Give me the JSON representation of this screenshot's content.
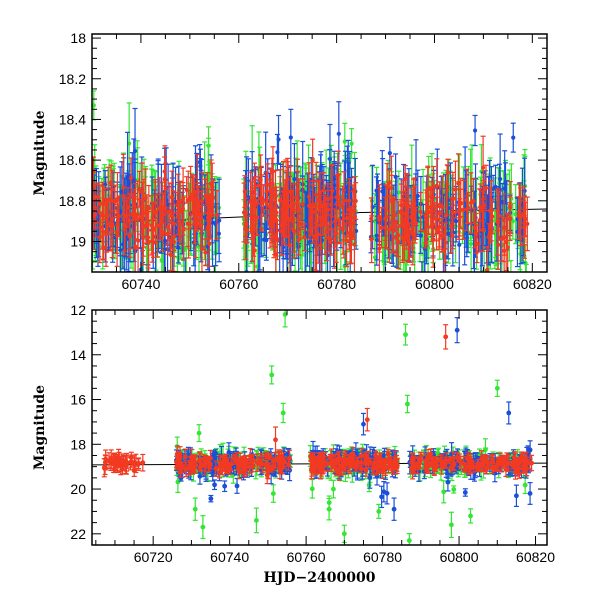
{
  "colors": {
    "green": "#33e633",
    "blue": "#1a4fd9",
    "red": "#f23a22",
    "model": "#000000"
  },
  "chart_data": [
    {
      "type": "scatter",
      "name": "top-panel",
      "xlabel": "",
      "ylabel": "Magnitude",
      "xlim": [
        60730,
        60823
      ],
      "ylim": [
        19.15,
        17.98
      ],
      "y_inverted": true,
      "xticks": [
        60740,
        60760,
        60780,
        60800,
        60820
      ],
      "yticks": [
        18,
        18.2,
        18.4,
        18.6,
        18.8,
        19
      ],
      "ytick_labels": [
        "18",
        "18.2",
        "18.4",
        "18.6",
        "18.8",
        "19"
      ],
      "baseline": 18.87,
      "model_line": [
        [
          60730,
          18.91
        ],
        [
          60780,
          18.86
        ],
        [
          60823,
          18.84
        ]
      ],
      "observation_segments": [
        [
          60730,
          60756
        ],
        [
          60761,
          60784
        ],
        [
          60787,
          60819
        ]
      ]
    },
    {
      "type": "scatter",
      "name": "bottom-panel",
      "xlabel": "HJD−2400000",
      "ylabel": "Magnitude",
      "xlim": [
        60704,
        60823
      ],
      "ylim": [
        22.5,
        12
      ],
      "y_inverted": true,
      "xticks": [
        60720,
        60740,
        60760,
        60780,
        60800,
        60820
      ],
      "yticks": [
        12,
        14,
        16,
        18,
        20,
        22
      ],
      "ytick_labels": [
        "12",
        "14",
        "16",
        "18",
        "20",
        "22"
      ],
      "baseline": 18.85,
      "model_line": [
        [
          60704,
          18.92
        ],
        [
          60780,
          18.86
        ],
        [
          60823,
          18.84
        ]
      ],
      "early_red_segment": [
        60707,
        60718
      ],
      "observation_segments": [
        [
          60726,
          60756
        ],
        [
          60761,
          60784
        ],
        [
          60787,
          60819
        ]
      ],
      "outliers": [
        {
          "series": "green",
          "x": 60754.5,
          "y": 12.2
        },
        {
          "series": "green",
          "x": 60751,
          "y": 14.9
        },
        {
          "series": "green",
          "x": 60754,
          "y": 16.6
        },
        {
          "series": "green",
          "x": 60786,
          "y": 13.1
        },
        {
          "series": "green",
          "x": 60786.5,
          "y": 16.2
        },
        {
          "series": "green",
          "x": 60810,
          "y": 15.5
        },
        {
          "series": "green",
          "x": 60732,
          "y": 17.5
        },
        {
          "series": "green",
          "x": 60731,
          "y": 20.9
        },
        {
          "series": "green",
          "x": 60733,
          "y": 21.7
        },
        {
          "series": "green",
          "x": 60747,
          "y": 21.4
        },
        {
          "series": "green",
          "x": 60770,
          "y": 22.0
        },
        {
          "series": "green",
          "x": 60787,
          "y": 22.3
        },
        {
          "series": "green",
          "x": 60798,
          "y": 21.6
        },
        {
          "series": "green",
          "x": 60803,
          "y": 21.2
        },
        {
          "series": "green",
          "x": 60779,
          "y": 21.0
        },
        {
          "series": "green",
          "x": 60766,
          "y": 20.9
        },
        {
          "series": "red",
          "x": 60796.5,
          "y": 13.2
        },
        {
          "series": "red",
          "x": 60776,
          "y": 16.9
        },
        {
          "series": "red",
          "x": 60752,
          "y": 17.8
        },
        {
          "series": "blue",
          "x": 60799.5,
          "y": 12.9
        },
        {
          "series": "blue",
          "x": 60813,
          "y": 16.6
        },
        {
          "series": "blue",
          "x": 60775,
          "y": 17.1
        },
        {
          "series": "blue",
          "x": 60815,
          "y": 20.3
        },
        {
          "series": "blue",
          "x": 60783,
          "y": 20.9
        }
      ]
    }
  ]
}
